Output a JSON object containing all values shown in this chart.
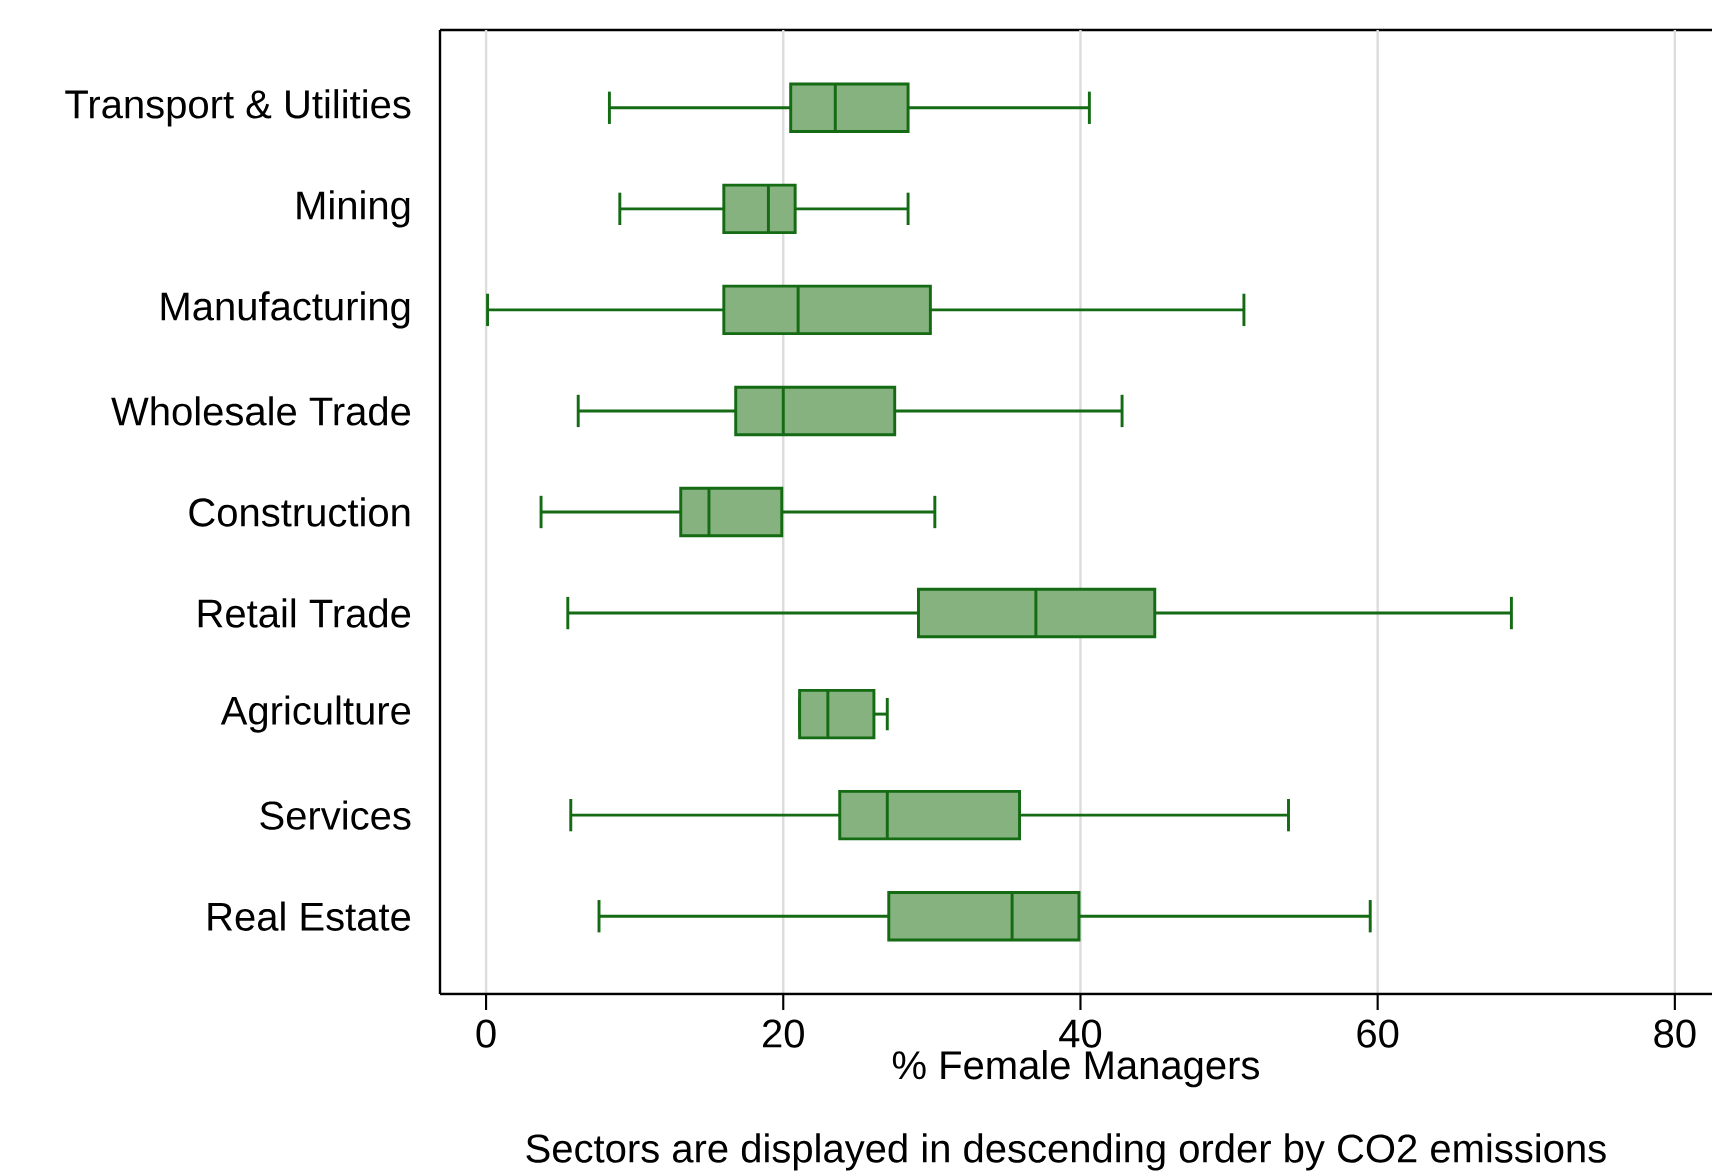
{
  "chart_data": {
    "type": "box",
    "orientation": "horizontal",
    "xlabel": "% Female Managers",
    "categories": [
      "Transport & Utilities",
      "Mining",
      "Manufacturing",
      "Wholesale Trade",
      "Construction",
      "Retail Trade",
      "Agriculture",
      "Services",
      "Real Estate"
    ],
    "series": [
      {
        "color": "#85b27f",
        "boxes": [
          {
            "low": 8.3,
            "q1": 20.5,
            "median": 23.5,
            "q3": 28.4,
            "high": 40.6
          },
          {
            "low": 9.0,
            "q1": 16.0,
            "median": 19.0,
            "q3": 20.8,
            "high": 28.4
          },
          {
            "low": 0.1,
            "q1": 16.0,
            "median": 21.0,
            "q3": 29.9,
            "high": 51.0
          },
          {
            "low": 6.2,
            "q1": 16.8,
            "median": 20.0,
            "q3": 27.5,
            "high": 42.8
          },
          {
            "low": 3.7,
            "q1": 13.1,
            "median": 15.0,
            "q3": 19.9,
            "high": 30.2
          },
          {
            "low": 5.5,
            "q1": 29.1,
            "median": 37.0,
            "q3": 45.0,
            "high": 69.0
          },
          {
            "low": 21.1,
            "q1": 21.1,
            "median": 23.0,
            "q3": 26.1,
            "high": 27.0
          },
          {
            "low": 5.7,
            "q1": 23.8,
            "median": 27.0,
            "q3": 35.9,
            "high": 54.0
          },
          {
            "low": 7.6,
            "q1": 27.1,
            "median": 35.4,
            "q3": 39.9,
            "high": 59.5
          }
        ]
      }
    ],
    "xlim": [
      -3.1,
      82.5
    ],
    "xticks": [
      0,
      20,
      40,
      60,
      80
    ],
    "grid": "x",
    "annotations": [
      "Sectors are displayed in descending order by CO2 emissions"
    ]
  }
}
